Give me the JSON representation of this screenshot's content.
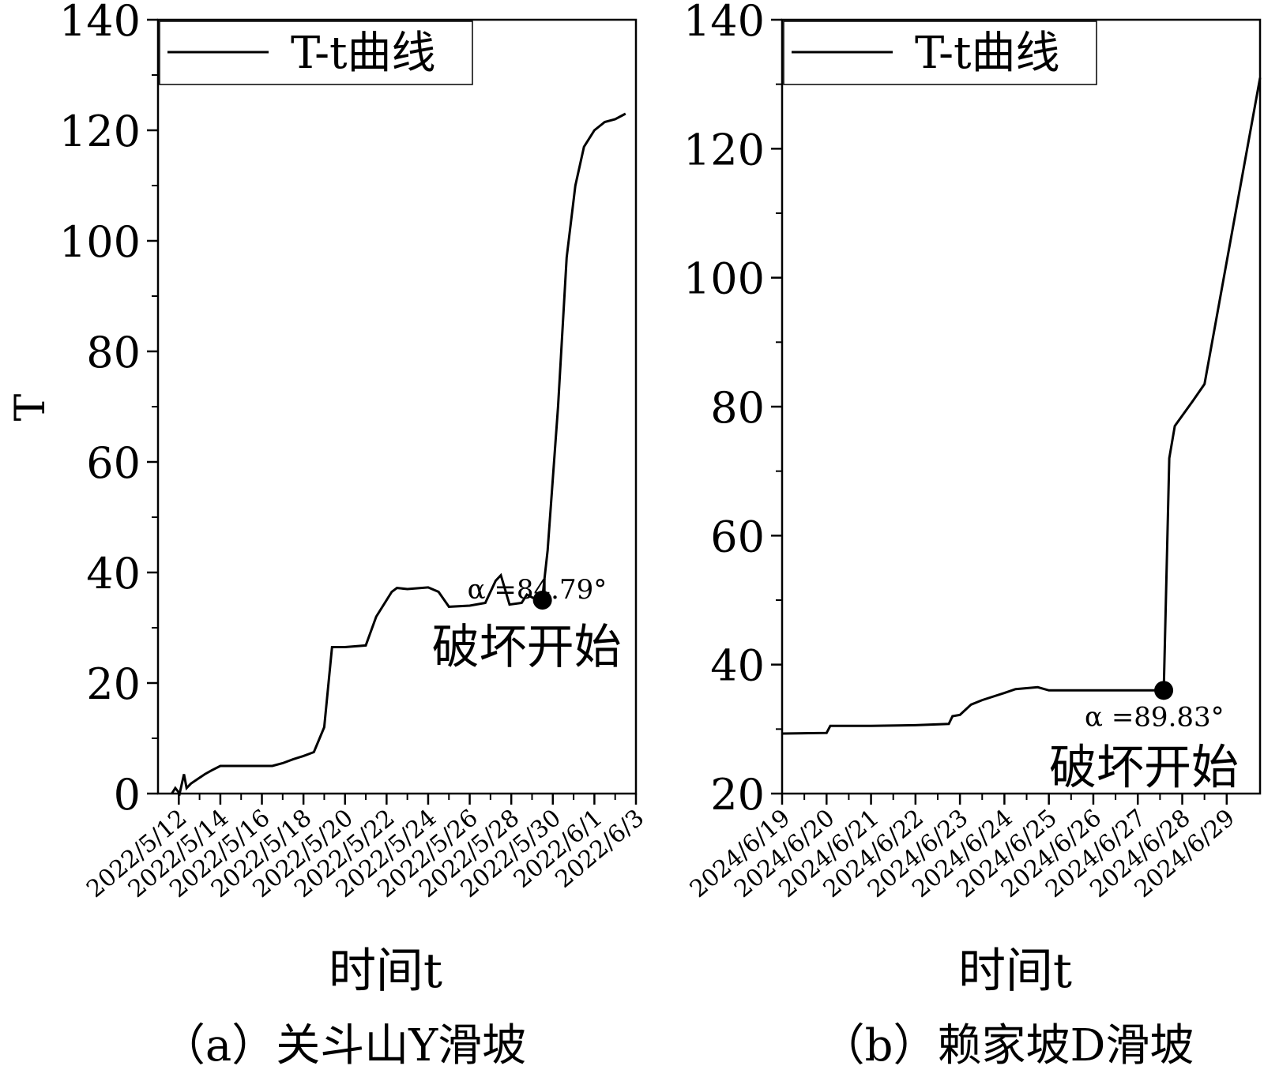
{
  "chart_data": [
    {
      "type": "line",
      "caption": "（a）关斗山Y滑坡",
      "xlabel": "时间t",
      "ylabel": "T",
      "ylim": [
        0,
        140
      ],
      "yticks": [
        0,
        20,
        40,
        60,
        80,
        100,
        120,
        140
      ],
      "xlim": [
        "2022/5/11",
        "2022/6/3"
      ],
      "xticks": [
        "2022/5/12",
        "2022/5/14",
        "2022/5/16",
        "2022/5/18",
        "2022/5/20",
        "2022/5/22",
        "2022/5/24",
        "2022/5/26",
        "2022/5/28",
        "2022/5/30",
        "2022/6/1",
        "2022/6/3"
      ],
      "legend": {
        "position": "top-left",
        "label": "T-t曲线"
      },
      "series": [
        {
          "name": "T-t曲线",
          "color": "#000000",
          "points": [
            [
              "2022/5/11 16:00",
              0
            ],
            [
              "2022/5/11 20:00",
              1.0
            ],
            [
              "2022/5/12 01:00",
              0
            ],
            [
              "2022/5/12 06:00",
              3.5
            ],
            [
              "2022/5/12 09:00",
              1.0
            ],
            [
              "2022/5/12 14:00",
              1.8
            ],
            [
              "2022/5/13 06:00",
              3.5
            ],
            [
              "2022/5/13 14:00",
              4.2
            ],
            [
              "2022/5/14 00:00",
              5.0
            ],
            [
              "2022/5/14 12:00",
              5.0
            ],
            [
              "2022/5/15 00:00",
              5.0
            ],
            [
              "2022/5/16 00:00",
              5.0
            ],
            [
              "2022/5/16 12:00",
              5.0
            ],
            [
              "2022/5/17 00:00",
              5.5
            ],
            [
              "2022/5/17 12:00",
              6.2
            ],
            [
              "2022/5/18 00:00",
              6.8
            ],
            [
              "2022/5/18 12:00",
              7.5
            ],
            [
              "2022/5/19 00:00",
              12.0
            ],
            [
              "2022/5/19 09:00",
              26.5
            ],
            [
              "2022/5/20 00:00",
              26.5
            ],
            [
              "2022/5/21 00:00",
              26.8
            ],
            [
              "2022/5/21 12:00",
              32.0
            ],
            [
              "2022/5/22 06:00",
              36.5
            ],
            [
              "2022/5/22 12:00",
              37.2
            ],
            [
              "2022/5/23 00:00",
              37.0
            ],
            [
              "2022/5/24 00:00",
              37.3
            ],
            [
              "2022/5/24 12:00",
              36.5
            ],
            [
              "2022/5/25 00:00",
              33.8
            ],
            [
              "2022/5/26 00:00",
              34.0
            ],
            [
              "2022/5/26 18:00",
              34.5
            ],
            [
              "2022/5/27 06:00",
              38.5
            ],
            [
              "2022/5/27 12:00",
              39.5
            ],
            [
              "2022/5/27 22:00",
              34.2
            ],
            [
              "2022/5/28 12:00",
              34.5
            ],
            [
              "2022/5/28 18:00",
              36.0
            ],
            [
              "2022/5/29 06:00",
              35.0
            ],
            [
              "2022/5/29 12:00",
              35.5
            ],
            [
              "2022/5/29 18:00",
              44.0
            ],
            [
              "2022/5/30 06:00",
              70.0
            ],
            [
              "2022/5/30 16:00",
              97.0
            ],
            [
              "2022/5/31 02:00",
              110.0
            ],
            [
              "2022/5/31 12:00",
              117.0
            ],
            [
              "2022/6/1 00:00",
              120.0
            ],
            [
              "2022/6/1 12:00",
              121.5
            ],
            [
              "2022/6/2 00:00",
              122.0
            ],
            [
              "2022/6/2 12:00",
              123.0
            ]
          ]
        }
      ],
      "annotation": {
        "x": "2022/5/29 12:00",
        "y": 35.0,
        "angle_label": "α =84.79°",
        "text": "破坏开始"
      }
    },
    {
      "type": "line",
      "caption": "（b）赖家坡D滑坡",
      "xlabel": "时间t",
      "ylabel": "",
      "ylim": [
        20,
        140
      ],
      "yticks": [
        20,
        40,
        60,
        80,
        100,
        120,
        140
      ],
      "xlim": [
        "2024/6/19",
        "2024/6/29 18:00"
      ],
      "xticks": [
        "2024/6/19",
        "2024/6/20",
        "2024/6/21",
        "2024/6/22",
        "2024/6/23",
        "2024/6/24",
        "2024/6/25",
        "2024/6/26",
        "2024/6/27",
        "2024/6/28",
        "2024/6/29"
      ],
      "legend": {
        "position": "top-left",
        "label": "T-t曲线"
      },
      "series": [
        {
          "name": "T-t曲线",
          "color": "#000000",
          "points": [
            [
              "2024/6/19 00:00",
              29.3
            ],
            [
              "2024/6/20 00:00",
              29.4
            ],
            [
              "2024/6/20 02:00",
              30.5
            ],
            [
              "2024/6/21 00:00",
              30.5
            ],
            [
              "2024/6/22 00:00",
              30.6
            ],
            [
              "2024/6/22 18:00",
              30.8
            ],
            [
              "2024/6/22 20:00",
              32.0
            ],
            [
              "2024/6/23 00:00",
              32.2
            ],
            [
              "2024/6/23 06:00",
              33.8
            ],
            [
              "2024/6/23 12:00",
              34.5
            ],
            [
              "2024/6/24 00:00",
              35.6
            ],
            [
              "2024/6/24 06:00",
              36.2
            ],
            [
              "2024/6/24 18:00",
              36.5
            ],
            [
              "2024/6/25 00:00",
              36.0
            ],
            [
              "2024/6/26 00:00",
              36.0
            ],
            [
              "2024/6/27 00:00",
              36.0
            ],
            [
              "2024/6/27 14:00",
              36.0
            ],
            [
              "2024/6/27 17:00",
              72.0
            ],
            [
              "2024/6/27 20:00",
              77.0
            ],
            [
              "2024/6/28 06:00",
              81.0
            ],
            [
              "2024/6/28 12:00",
              83.5
            ],
            [
              "2024/6/29 18:00",
              131.0
            ]
          ]
        }
      ],
      "annotation": {
        "x": "2024/6/27 14:00",
        "y": 36.0,
        "angle_label": "α =89.83°",
        "text": "破坏开始"
      }
    }
  ]
}
